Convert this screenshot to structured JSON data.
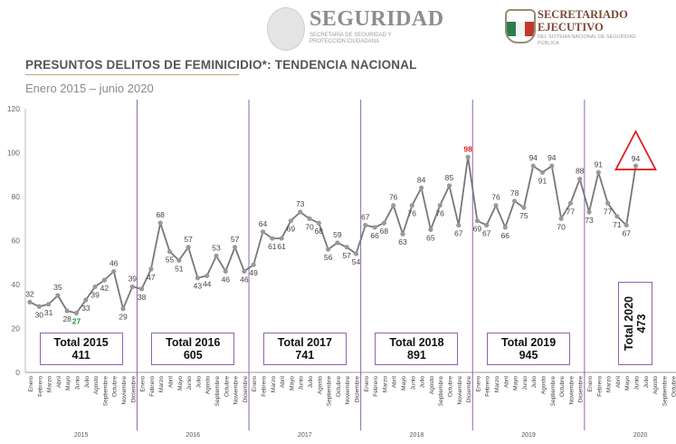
{
  "header": {
    "seguridad_title": "SEGURIDAD",
    "seguridad_sub": "SECRETARÍA DE SEGURIDAD Y PROTECCIÓN CIUDADANA",
    "secretariado_title_1": "SECRETARIADO",
    "secretariado_title_2": "EJECUTIVO",
    "secretariado_sub": "DEL SISTEMA NACIONAL DE SEGURIDAD PÚBLICA"
  },
  "chart_data": {
    "type": "line",
    "title": "PRESUNTOS DELITOS DE FEMINICIDIO*: TENDENCIA NACIONAL",
    "subtitle": "Enero 2015 – junio 2020",
    "ylim": [
      0,
      120
    ],
    "yticks": [
      0,
      20,
      40,
      60,
      80,
      100,
      120
    ],
    "months": [
      "Enero",
      "Febrero",
      "Marzo",
      "Abril",
      "Mayo",
      "Junio",
      "Julio",
      "Agosto",
      "Septiembre",
      "Octubre",
      "Noviembre",
      "Diciembre"
    ],
    "years": [
      "2015",
      "2016",
      "2017",
      "2018",
      "2019",
      "2020"
    ],
    "values": [
      32,
      30,
      31,
      35,
      28,
      27,
      33,
      39,
      42,
      46,
      29,
      39,
      38,
      47,
      68,
      55,
      51,
      57,
      43,
      44,
      53,
      46,
      57,
      46,
      49,
      64,
      61,
      61,
      69,
      73,
      70,
      68,
      56,
      59,
      57,
      54,
      67,
      66,
      68,
      76,
      63,
      76,
      84,
      65,
      76,
      85,
      67,
      98,
      69,
      67,
      76,
      66,
      78,
      75,
      94,
      91,
      94,
      70,
      77,
      88,
      73,
      91,
      77,
      71,
      67,
      94
    ],
    "max_label_color": "#e02020",
    "min_label_color": "#1a9a3a",
    "totals": [
      {
        "label": "Total 2015",
        "value": "411"
      },
      {
        "label": "Total 2016",
        "value": "605"
      },
      {
        "label": "Total 2017",
        "value": "741"
      },
      {
        "label": "Total 2018",
        "value": "891"
      },
      {
        "label": "Total 2019",
        "value": "945"
      },
      {
        "label": "Total 2020",
        "value": "473"
      }
    ],
    "colors": {
      "line": "#777777",
      "point": "#999999",
      "separator": "#8e63b0",
      "grid": "#dddddd"
    }
  }
}
